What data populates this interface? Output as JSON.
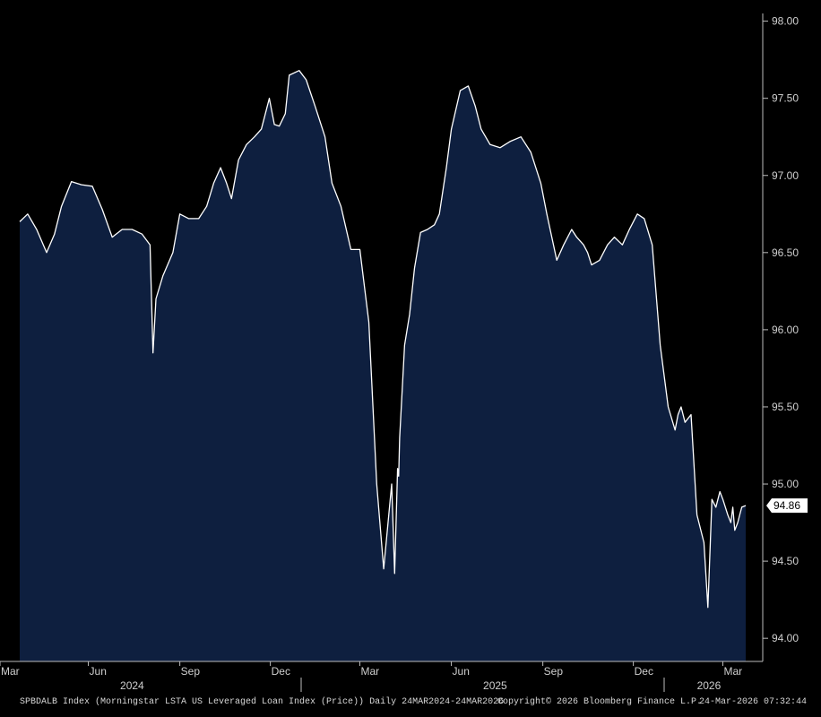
{
  "chart_data": {
    "type": "area",
    "series_color": "#0e1f3f",
    "line_color": "#ffffff",
    "background_color": "#000000",
    "ylim": [
      93.85,
      98.05
    ],
    "xlim": [
      "2024-03-24",
      "2026-03-24"
    ],
    "grid": false,
    "y_ticks": [
      "98.00",
      "97.50",
      "97.00",
      "96.50",
      "96.00",
      "95.50",
      "95.00",
      "94.50",
      "94.00"
    ],
    "x_ticks": [
      {
        "date": "2024-03-01",
        "label": "Mar"
      },
      {
        "date": "2024-06-01",
        "label": "Jun"
      },
      {
        "date": "2024-09-01",
        "label": "Sep"
      },
      {
        "date": "2024-12-01",
        "label": "Dec"
      },
      {
        "date": "2025-03-01",
        "label": "Mar"
      },
      {
        "date": "2025-06-01",
        "label": "Jun"
      },
      {
        "date": "2025-09-01",
        "label": "Sep"
      },
      {
        "date": "2025-12-01",
        "label": "Dec"
      },
      {
        "date": "2026-03-01",
        "label": "Mar"
      }
    ],
    "year_labels": [
      {
        "date": "2024-07-15",
        "label": "2024"
      },
      {
        "date": "2025-07-15",
        "label": "2025"
      },
      {
        "date": "2026-02-15",
        "label": "2026"
      }
    ],
    "last_value": "94.86",
    "x": [
      "2024-03-24",
      "2024-04-01",
      "2024-04-10",
      "2024-04-20",
      "2024-04-28",
      "2024-05-05",
      "2024-05-15",
      "2024-05-25",
      "2024-06-05",
      "2024-06-15",
      "2024-06-25",
      "2024-07-05",
      "2024-07-15",
      "2024-07-25",
      "2024-08-02",
      "2024-08-05",
      "2024-08-08",
      "2024-08-15",
      "2024-08-25",
      "2024-09-01",
      "2024-09-10",
      "2024-09-20",
      "2024-09-28",
      "2024-10-05",
      "2024-10-12",
      "2024-10-18",
      "2024-10-23",
      "2024-10-30",
      "2024-11-07",
      "2024-11-15",
      "2024-11-22",
      "2024-11-30",
      "2024-12-05",
      "2024-12-10",
      "2024-12-16",
      "2024-12-20",
      "2024-12-30",
      "2025-01-06",
      "2025-01-15",
      "2025-01-25",
      "2025-02-01",
      "2025-02-10",
      "2025-02-20",
      "2025-03-01",
      "2025-03-10",
      "2025-03-18",
      "2025-03-25",
      "2025-04-02",
      "2025-04-05",
      "2025-04-08",
      "2025-04-09",
      "2025-04-10",
      "2025-04-15",
      "2025-04-20",
      "2025-04-25",
      "2025-05-01",
      "2025-05-08",
      "2025-05-15",
      "2025-05-20",
      "2025-05-27",
      "2025-06-01",
      "2025-06-10",
      "2025-06-18",
      "2025-06-25",
      "2025-07-01",
      "2025-07-10",
      "2025-07-20",
      "2025-07-30",
      "2025-08-10",
      "2025-08-20",
      "2025-08-30",
      "2025-09-05",
      "2025-09-15",
      "2025-09-22",
      "2025-09-30",
      "2025-10-05",
      "2025-10-12",
      "2025-10-16",
      "2025-10-20",
      "2025-10-28",
      "2025-11-05",
      "2025-11-12",
      "2025-11-20",
      "2025-11-27",
      "2025-12-05",
      "2025-12-12",
      "2025-12-20",
      "2025-12-28",
      "2026-01-05",
      "2026-01-12",
      "2026-01-15",
      "2026-01-18",
      "2026-01-22",
      "2026-01-28",
      "2026-02-03",
      "2026-02-10",
      "2026-02-14",
      "2026-02-18",
      "2026-02-22",
      "2026-02-26",
      "2026-03-01",
      "2026-03-03",
      "2026-03-06",
      "2026-03-09",
      "2026-03-11",
      "2026-03-13",
      "2026-03-16",
      "2026-03-18",
      "2026-03-20",
      "2026-03-24"
    ],
    "y": [
      96.7,
      96.75,
      96.65,
      96.5,
      96.62,
      96.8,
      96.96,
      96.94,
      96.93,
      96.78,
      96.6,
      96.65,
      96.65,
      96.62,
      96.55,
      95.85,
      96.2,
      96.35,
      96.5,
      96.75,
      96.72,
      96.72,
      96.8,
      96.95,
      97.05,
      96.95,
      96.85,
      97.1,
      97.2,
      97.25,
      97.3,
      97.5,
      97.33,
      97.32,
      97.4,
      97.65,
      97.68,
      97.62,
      97.45,
      97.25,
      96.95,
      96.8,
      96.52,
      96.52,
      96.05,
      95.0,
      94.45,
      95.0,
      94.42,
      95.1,
      95.05,
      95.3,
      95.9,
      96.1,
      96.4,
      96.63,
      96.65,
      96.68,
      96.75,
      97.05,
      97.3,
      97.55,
      97.58,
      97.45,
      97.3,
      97.2,
      97.18,
      97.22,
      97.25,
      97.15,
      96.95,
      96.75,
      96.45,
      96.55,
      96.65,
      96.6,
      96.55,
      96.5,
      96.42,
      96.45,
      96.55,
      96.6,
      96.55,
      96.65,
      96.75,
      96.72,
      96.55,
      95.9,
      95.5,
      95.35,
      95.45,
      95.5,
      95.4,
      95.45,
      94.8,
      94.62,
      94.2,
      94.9,
      94.85,
      94.95,
      94.9,
      94.86,
      94.8,
      94.75,
      94.85,
      94.7,
      94.75,
      94.8,
      94.85,
      94.86
    ]
  },
  "footer": {
    "description": "SPBDALB Index (Morningstar LSTA US Leveraged Loan Index (Price)) Daily 24MAR2024-24MAR2026",
    "copyright": "Copyright© 2026 Bloomberg Finance L.P.",
    "timestamp": "24-Mar-2026 07:32:44"
  }
}
